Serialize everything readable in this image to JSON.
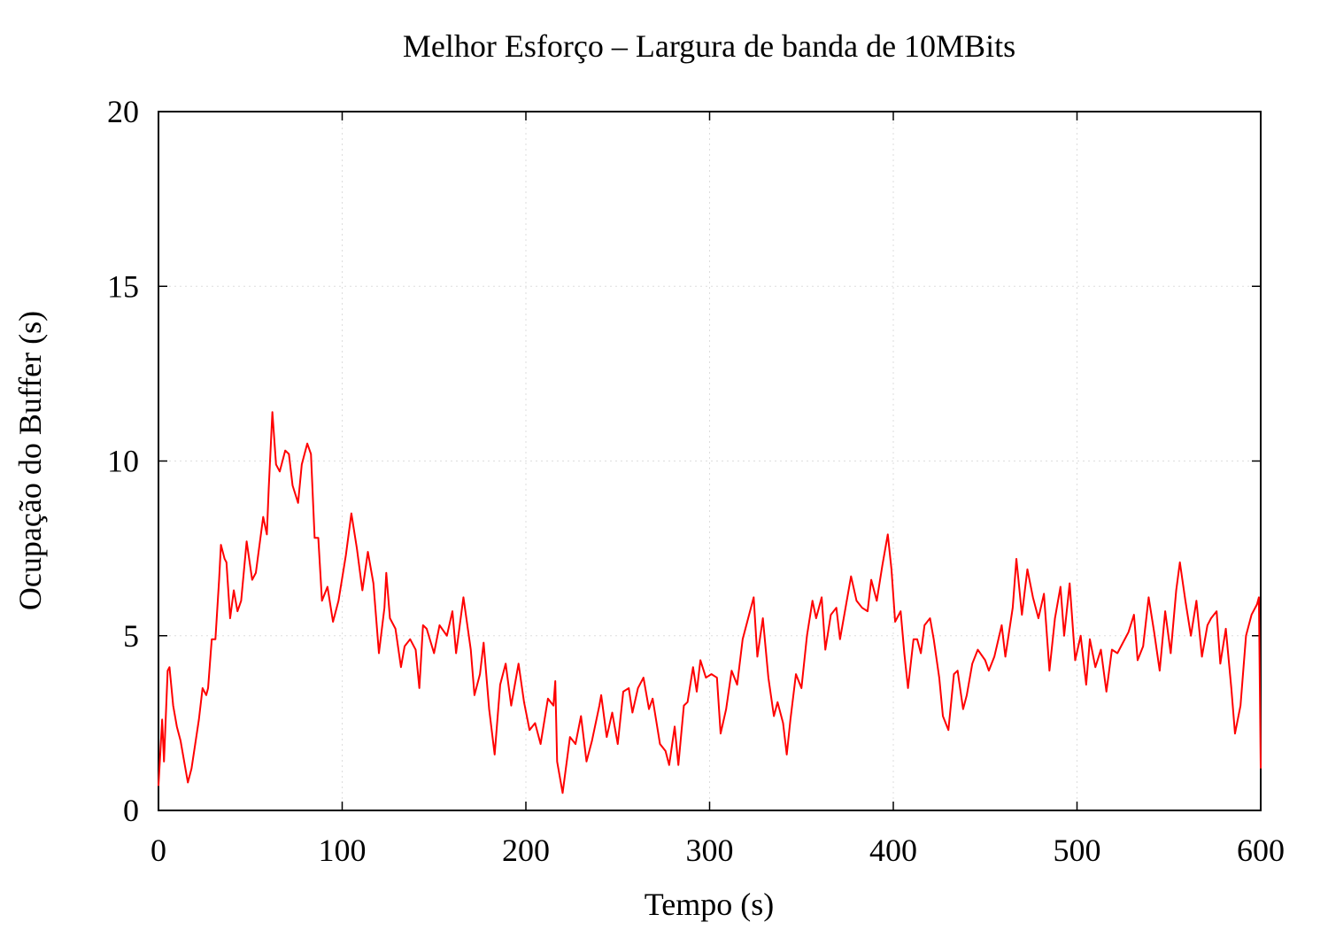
{
  "chart_data": {
    "type": "line",
    "title": "Melhor Esforço – Largura de banda de 10MBits",
    "x_label": "Tempo (s)",
    "y_label": "Ocupação do Buffer (s)",
    "xlim": [
      0,
      600
    ],
    "xticks": [
      0,
      100,
      200,
      300,
      400,
      500,
      600
    ],
    "ylim": [
      0,
      20
    ],
    "yticks": [
      0,
      5,
      10,
      15,
      20
    ],
    "grid": true,
    "series": [
      {
        "color": "#ff0000",
        "x": [
          0,
          2,
          3,
          5,
          6,
          8,
          10,
          12,
          14,
          16,
          18,
          20,
          22,
          24,
          26,
          27,
          29,
          31,
          33,
          34,
          36,
          37,
          39,
          41,
          43,
          45,
          48,
          51,
          53,
          57,
          59,
          60,
          62,
          64,
          66,
          69,
          71,
          73,
          76,
          78,
          81,
          83,
          85,
          87,
          89,
          92,
          95,
          98,
          102,
          105,
          108,
          111,
          114,
          117,
          120,
          123,
          124,
          126,
          129,
          132,
          134,
          137,
          140,
          142,
          144,
          146,
          150,
          153,
          157,
          160,
          162,
          166,
          170,
          172,
          175,
          177,
          180,
          183,
          186,
          189,
          192,
          196,
          199,
          202,
          205,
          208,
          212,
          215,
          216,
          217,
          220,
          224,
          227,
          230,
          233,
          236,
          240,
          241,
          244,
          247,
          250,
          253,
          256,
          258,
          261,
          264,
          267,
          269,
          273,
          276,
          278,
          281,
          283,
          286,
          288,
          291,
          293,
          295,
          298,
          301,
          304,
          306,
          309,
          312,
          315,
          318,
          321,
          324,
          326,
          329,
          332,
          335,
          337,
          340,
          342,
          344,
          347,
          350,
          353,
          356,
          358,
          361,
          363,
          366,
          369,
          371,
          374,
          377,
          380,
          383,
          386,
          388,
          391,
          394,
          397,
          399,
          401,
          404,
          406,
          408,
          411,
          413,
          415,
          417,
          420,
          422,
          425,
          427,
          430,
          433,
          435,
          438,
          440,
          443,
          446,
          450,
          452,
          455,
          459,
          461,
          465,
          467,
          470,
          473,
          476,
          479,
          482,
          485,
          488,
          491,
          493,
          496,
          499,
          502,
          505,
          507,
          510,
          513,
          516,
          519,
          522,
          525,
          528,
          531,
          533,
          536,
          539,
          542,
          545,
          548,
          551,
          554,
          556,
          559,
          562,
          565,
          568,
          571,
          573,
          576,
          578,
          581,
          584,
          586,
          589,
          592,
          595,
          598,
          599,
          600
        ],
        "values": [
          0.7,
          2.6,
          1.4,
          4.0,
          4.1,
          3.0,
          2.4,
          2.0,
          1.4,
          0.8,
          1.2,
          1.9,
          2.6,
          3.5,
          3.3,
          3.5,
          4.9,
          4.9,
          6.6,
          7.6,
          7.2,
          7.1,
          5.5,
          6.3,
          5.7,
          6.0,
          7.7,
          6.6,
          6.8,
          8.4,
          7.9,
          9.2,
          11.4,
          9.9,
          9.7,
          10.3,
          10.2,
          9.3,
          8.8,
          9.9,
          10.5,
          10.2,
          7.8,
          7.8,
          6.0,
          6.4,
          5.4,
          6.0,
          7.3,
          8.5,
          7.5,
          6.3,
          7.4,
          6.5,
          4.5,
          5.8,
          6.8,
          5.5,
          5.2,
          4.1,
          4.7,
          4.9,
          4.6,
          3.5,
          5.3,
          5.2,
          4.5,
          5.3,
          5.0,
          5.7,
          4.5,
          6.1,
          4.6,
          3.3,
          3.9,
          4.8,
          2.9,
          1.6,
          3.6,
          4.2,
          3.0,
          4.2,
          3.1,
          2.3,
          2.5,
          1.9,
          3.2,
          3.0,
          3.7,
          1.4,
          0.5,
          2.1,
          1.9,
          2.7,
          1.4,
          2.0,
          3.0,
          3.3,
          2.1,
          2.8,
          1.9,
          3.4,
          3.5,
          2.8,
          3.5,
          3.8,
          2.9,
          3.2,
          1.9,
          1.7,
          1.3,
          2.4,
          1.3,
          3.0,
          3.1,
          4.1,
          3.4,
          4.3,
          3.8,
          3.9,
          3.8,
          2.2,
          2.9,
          4.0,
          3.6,
          4.9,
          5.5,
          6.1,
          4.4,
          5.5,
          3.8,
          2.7,
          3.1,
          2.5,
          1.6,
          2.6,
          3.9,
          3.5,
          5.0,
          6.0,
          5.5,
          6.1,
          4.6,
          5.6,
          5.8,
          4.9,
          5.8,
          6.7,
          6.0,
          5.8,
          5.7,
          6.6,
          6.0,
          7.0,
          7.9,
          6.9,
          5.4,
          5.7,
          4.5,
          3.5,
          4.9,
          4.9,
          4.5,
          5.3,
          5.5,
          4.9,
          3.8,
          2.7,
          2.3,
          3.9,
          4.0,
          2.9,
          3.3,
          4.2,
          4.6,
          4.3,
          4.0,
          4.4,
          5.3,
          4.4,
          5.8,
          7.2,
          5.6,
          6.9,
          6.1,
          5.5,
          6.2,
          4.0,
          5.5,
          6.4,
          5.0,
          6.5,
          4.3,
          5.0,
          3.6,
          4.9,
          4.1,
          4.6,
          3.4,
          4.6,
          4.5,
          4.8,
          5.1,
          5.6,
          4.3,
          4.7,
          6.1,
          5.1,
          4.0,
          5.7,
          4.5,
          6.3,
          7.1,
          6.0,
          5.0,
          6.0,
          4.4,
          5.3,
          5.5,
          5.7,
          4.2,
          5.2,
          3.5,
          2.2,
          3.0,
          5.0,
          5.6,
          5.9,
          6.1,
          1.2
        ]
      }
    ]
  }
}
